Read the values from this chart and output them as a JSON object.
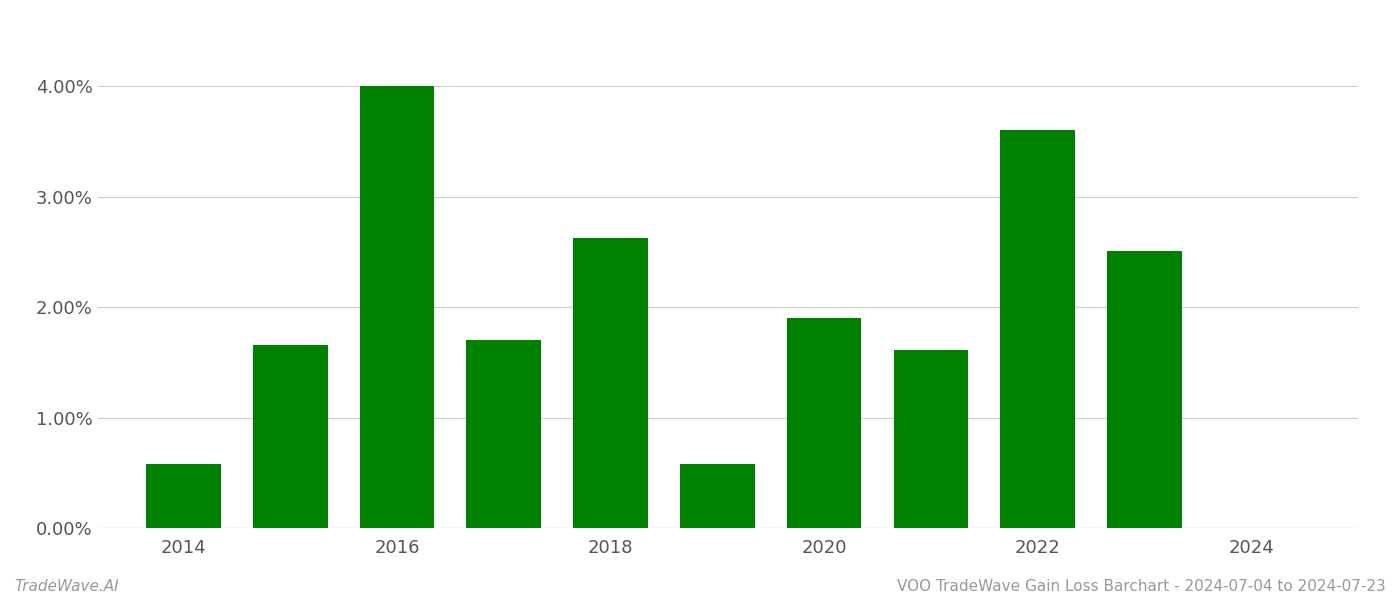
{
  "years": [
    2014,
    2015,
    2016,
    2017,
    2018,
    2019,
    2020,
    2021,
    2022,
    2023
  ],
  "values": [
    0.0058,
    0.0166,
    0.04,
    0.017,
    0.0263,
    0.0058,
    0.019,
    0.0161,
    0.036,
    0.0251
  ],
  "bar_color": "#008000",
  "background_color": "#ffffff",
  "grid_color": "#cccccc",
  "ylim": [
    0,
    0.044
  ],
  "ytick_values": [
    0.0,
    0.01,
    0.02,
    0.03,
    0.04
  ],
  "xtick_labels": [
    "2014",
    "2016",
    "2018",
    "2020",
    "2022",
    "2024"
  ],
  "xtick_positions": [
    2014,
    2016,
    2018,
    2020,
    2022,
    2024
  ],
  "footer_left": "TradeWave.AI",
  "footer_right": "VOO TradeWave Gain Loss Barchart - 2024-07-04 to 2024-07-23",
  "footer_color": "#999999",
  "bar_width": 0.7,
  "xlim": [
    2013.2,
    2025.0
  ]
}
